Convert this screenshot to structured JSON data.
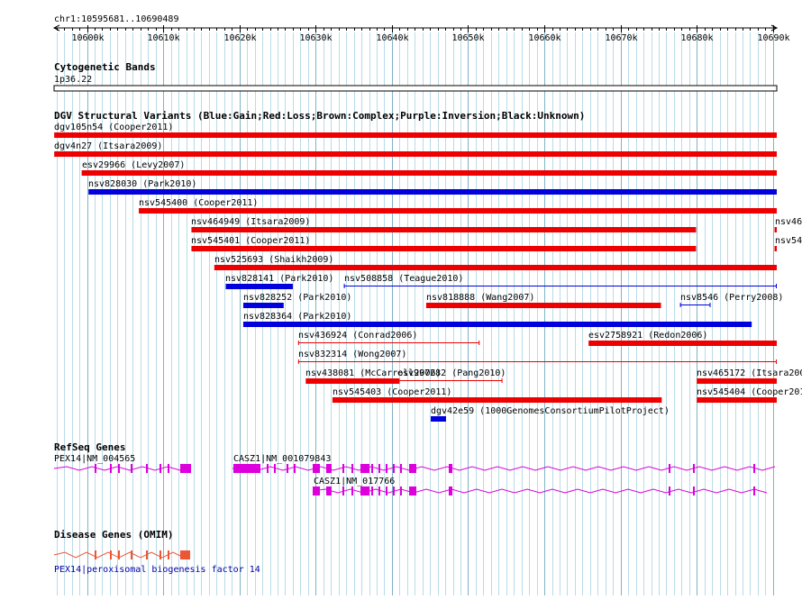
{
  "region": "chr1:10595681..10690489",
  "ruler": {
    "ticks": [
      {
        "label": "10600k",
        "kb": 10600
      },
      {
        "label": "10610k",
        "kb": 10610
      },
      {
        "label": "10620k",
        "kb": 10620
      },
      {
        "label": "10630k",
        "kb": 10630
      },
      {
        "label": "10640k",
        "kb": 10640
      },
      {
        "label": "10650k",
        "kb": 10650
      },
      {
        "label": "10660k",
        "kb": 10660
      },
      {
        "label": "10670k",
        "kb": 10670
      },
      {
        "label": "10680k",
        "kb": 10680
      },
      {
        "label": "10690k",
        "kb": 10690
      }
    ]
  },
  "cytobands": {
    "title": "Cytogenetic Bands",
    "band": "1p36.22"
  },
  "variants": {
    "title": "DGV Structural Variants (Blue:Gain;Red:Loss;Brown:Complex;Purple:Inversion;Black:Unknown)",
    "colors": {
      "gain": "#0000dd",
      "loss": "#ee0000"
    },
    "features": [
      {
        "label": "dgv105n54 (Cooper2011)",
        "type": "loss",
        "style": "bar",
        "start_kb": 10595.7,
        "end_kb": 10690.5
      },
      {
        "label": "dgv4n27 (Itsara2009)",
        "type": "loss",
        "style": "bar",
        "start_kb": 10595.7,
        "end_kb": 10690.5
      },
      {
        "label": "esv29966 (Levy2007)",
        "type": "loss",
        "style": "bar",
        "start_kb": 10599.3,
        "end_kb": 10690.5
      },
      {
        "label": "nsv828030 (Park2010)",
        "type": "gain",
        "style": "bar",
        "start_kb": 10600.2,
        "end_kb": 10690.5
      },
      {
        "label": "nsv545400 (Cooper2011)",
        "type": "loss",
        "style": "bar",
        "start_kb": 10606.8,
        "end_kb": 10690.5
      },
      {
        "label": "nsv464949 (Itsara2009)",
        "type": "loss",
        "style": "bar",
        "start_kb": 10613.7,
        "end_kb": 10679.9
      },
      {
        "label": "nsv46",
        "type": "loss",
        "style": "bar",
        "start_kb": 10690.2,
        "end_kb": 10690.5
      },
      {
        "label": "nsv545401 (Cooper2011)",
        "type": "loss",
        "style": "bar",
        "start_kb": 10613.7,
        "end_kb": 10679.9
      },
      {
        "label": "nsv54",
        "type": "loss",
        "style": "bar",
        "start_kb": 10690.2,
        "end_kb": 10690.5
      },
      {
        "label": "nsv525693 (Shaikh2009)",
        "type": "loss",
        "style": "bar",
        "start_kb": 10616.7,
        "end_kb": 10690.5
      },
      {
        "label": "nsv828141 (Park2010)",
        "type": "gain",
        "style": "bar",
        "start_kb": 10618.2,
        "end_kb": 10627.0
      },
      {
        "label": "nsv508858 (Teague2010)",
        "type": "gain",
        "style": "line",
        "start_kb": 10633.7,
        "end_kb": 10690.5
      },
      {
        "label": "nsv828252 (Park2010)",
        "type": "gain",
        "style": "bar",
        "start_kb": 10620.5,
        "end_kb": 10625.8
      },
      {
        "label": "nsv818888 (Wang2007)",
        "type": "loss",
        "style": "bar",
        "start_kb": 10644.5,
        "end_kb": 10675.3
      },
      {
        "label": "nsv8546 (Perry2008)",
        "type": "gain",
        "style": "line",
        "start_kb": 10677.8,
        "end_kb": 10681.8
      },
      {
        "label": "nsv828364 (Park2010)",
        "type": "gain",
        "style": "bar",
        "start_kb": 10620.5,
        "end_kb": 10687.2
      },
      {
        "label": "nsv436924 (Conrad2006)",
        "type": "loss",
        "style": "line",
        "start_kb": 10627.7,
        "end_kb": 10651.5
      },
      {
        "label": "esv2758921 (Redon2006)",
        "type": "loss",
        "style": "bar",
        "start_kb": 10665.8,
        "end_kb": 10690.5
      },
      {
        "label": "nsv832314 (Wong2007)",
        "type": "loss",
        "style": "line",
        "start_kb": 10627.7,
        "end_kb": 10690.5
      },
      {
        "label": "nsv438081 (McCarroll2006)",
        "type": "loss",
        "style": "bar",
        "start_kb": 10628.7,
        "end_kb": 10641.0
      },
      {
        "label": "esv997282 (Pang2010)",
        "type": "loss",
        "style": "line",
        "start_kb": 10640.7,
        "end_kb": 10654.5
      },
      {
        "label": "nsv465172 (Itsara200",
        "type": "loss",
        "style": "bar",
        "start_kb": 10680.0,
        "end_kb": 10690.5
      },
      {
        "label": "nsv545403 (Cooper2011)",
        "type": "loss",
        "style": "bar",
        "start_kb": 10632.2,
        "end_kb": 10675.4
      },
      {
        "label": "nsv545404 (Cooper201",
        "type": "loss",
        "style": "bar",
        "start_kb": 10680.0,
        "end_kb": 10690.5
      },
      {
        "label": "dgv42e59 (1000GenomesConsortiumPilotProject)",
        "type": "gain",
        "style": "bar",
        "start_kb": 10645.1,
        "end_kb": 10647.1
      }
    ]
  },
  "refseq": {
    "title": "RefSeq Genes",
    "color": "#dd00dd",
    "genes": [
      {
        "label": "PEX14|NM_004565"
      },
      {
        "label": "CASZ1|NM_001079843"
      },
      {
        "label": "CASZ1|NM_017766"
      }
    ]
  },
  "omim": {
    "title": "Disease Genes (OMIM)",
    "color": "#ee5533",
    "gene": {
      "label": "PEX14|peroxisomal biogenesis factor 14"
    }
  }
}
